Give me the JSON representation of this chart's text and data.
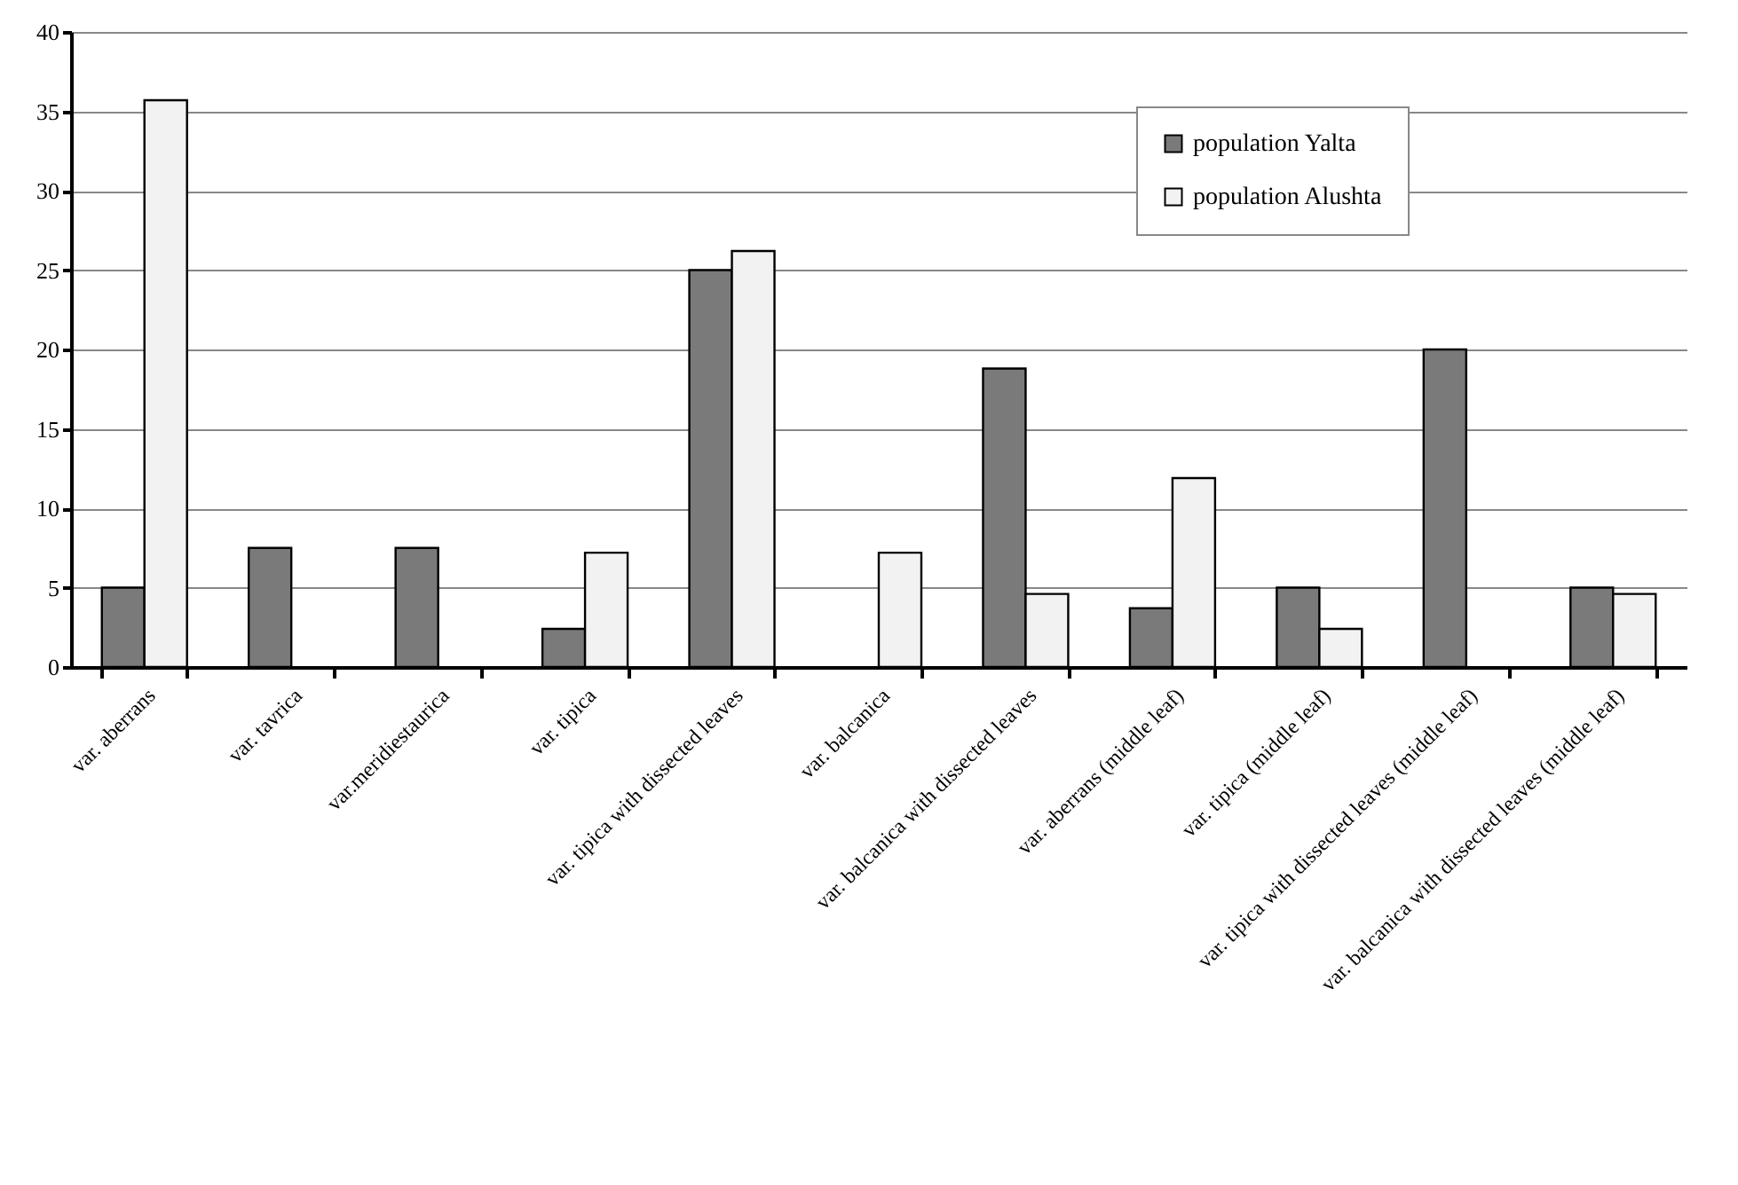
{
  "chart_data": {
    "type": "bar",
    "categories": [
      "var. aberrans",
      "var. tavrica",
      "var.meridiestaurica",
      "var. tipica",
      "var. tipica with dissected leaves",
      "var. balcanica",
      "var. balcanica with dissected leaves",
      "var. aberrans (middle leaf)",
      "var. tipica (middle leaf)",
      "var. tipica with dissected leaves (middle leaf)",
      "var. balcanica with dissected leaves (middle leaf)"
    ],
    "series": [
      {
        "name": "population Yalta",
        "color": "#7a7a7a",
        "values": [
          5,
          7.5,
          7.5,
          2.4,
          25,
          null,
          18.8,
          3.7,
          5,
          20,
          5
        ]
      },
      {
        "name": "population Alushta",
        "color": "#f2f2f2",
        "values": [
          35.7,
          null,
          null,
          7.2,
          26.2,
          7.2,
          4.6,
          11.9,
          2.4,
          null,
          4.6
        ]
      }
    ],
    "ylim": [
      0,
      40
    ],
    "yticks": [
      0,
      5,
      10,
      15,
      20,
      25,
      30,
      35,
      40
    ],
    "grid": "y",
    "legend": "top right"
  }
}
